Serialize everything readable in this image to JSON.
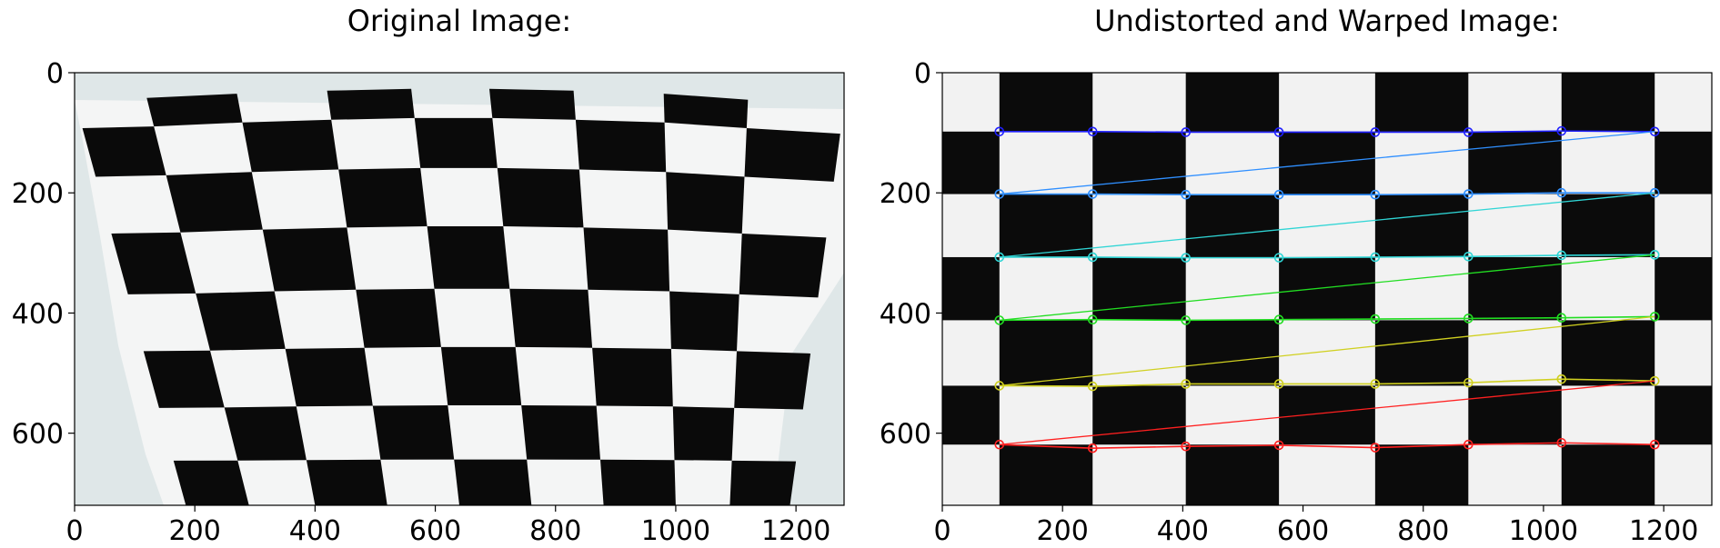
{
  "figure": {
    "panels": [
      {
        "id": "original",
        "title": "Original Image:",
        "xlim": [
          0,
          1280
        ],
        "ylim": [
          720,
          0
        ],
        "xticks": [
          0,
          200,
          400,
          600,
          800,
          1000,
          1200
        ],
        "yticks": [
          0,
          200,
          400,
          600
        ],
        "xtick_labels": [
          "0",
          "200",
          "400",
          "600",
          "800",
          "1000",
          "1200"
        ],
        "ytick_labels": [
          "0",
          "200",
          "400",
          "600"
        ]
      },
      {
        "id": "warped",
        "title": "Undistorted and Warped Image:",
        "xlim": [
          0,
          1280
        ],
        "ylim": [
          720,
          0
        ],
        "xticks": [
          0,
          200,
          400,
          600,
          800,
          1000,
          1200
        ],
        "yticks": [
          0,
          200,
          400,
          600
        ],
        "xtick_labels": [
          "0",
          "200",
          "400",
          "600",
          "800",
          "1000",
          "1200"
        ],
        "ytick_labels": [
          "0",
          "200",
          "400",
          "600"
        ]
      }
    ]
  },
  "chart_data": [
    {
      "type": "image",
      "title": "Original Image:",
      "xlim": [
        0,
        1280
      ],
      "ylim": [
        720,
        0
      ],
      "content": "chessboard photo, perspective distorted"
    },
    {
      "type": "scatter",
      "title": "Undistorted and Warped Image:",
      "xlim": [
        0,
        1280
      ],
      "ylim": [
        720,
        0
      ],
      "content": "chessboard with detected corners",
      "corner_columns_x": [
        95,
        250,
        405,
        560,
        720,
        875,
        1030,
        1185
      ],
      "rows": [
        {
          "color": "#1f1fff",
          "y": [
            98,
            98,
            99,
            99,
            99,
            99,
            97,
            98
          ]
        },
        {
          "color": "#2f8fff",
          "y": [
            202,
            202,
            203,
            203,
            203,
            202,
            200,
            200
          ]
        },
        {
          "color": "#2fd5d5",
          "y": [
            307,
            307,
            308,
            308,
            307,
            306,
            304,
            303
          ]
        },
        {
          "color": "#22dd22",
          "y": [
            412,
            411,
            412,
            411,
            410,
            409,
            408,
            406
          ]
        },
        {
          "color": "#d0d020",
          "y": [
            521,
            522,
            518,
            518,
            518,
            516,
            510,
            513
          ]
        },
        {
          "color": "#ff2020",
          "y": [
            619,
            625,
            622,
            620,
            624,
            619,
            616,
            619
          ]
        }
      ]
    }
  ]
}
